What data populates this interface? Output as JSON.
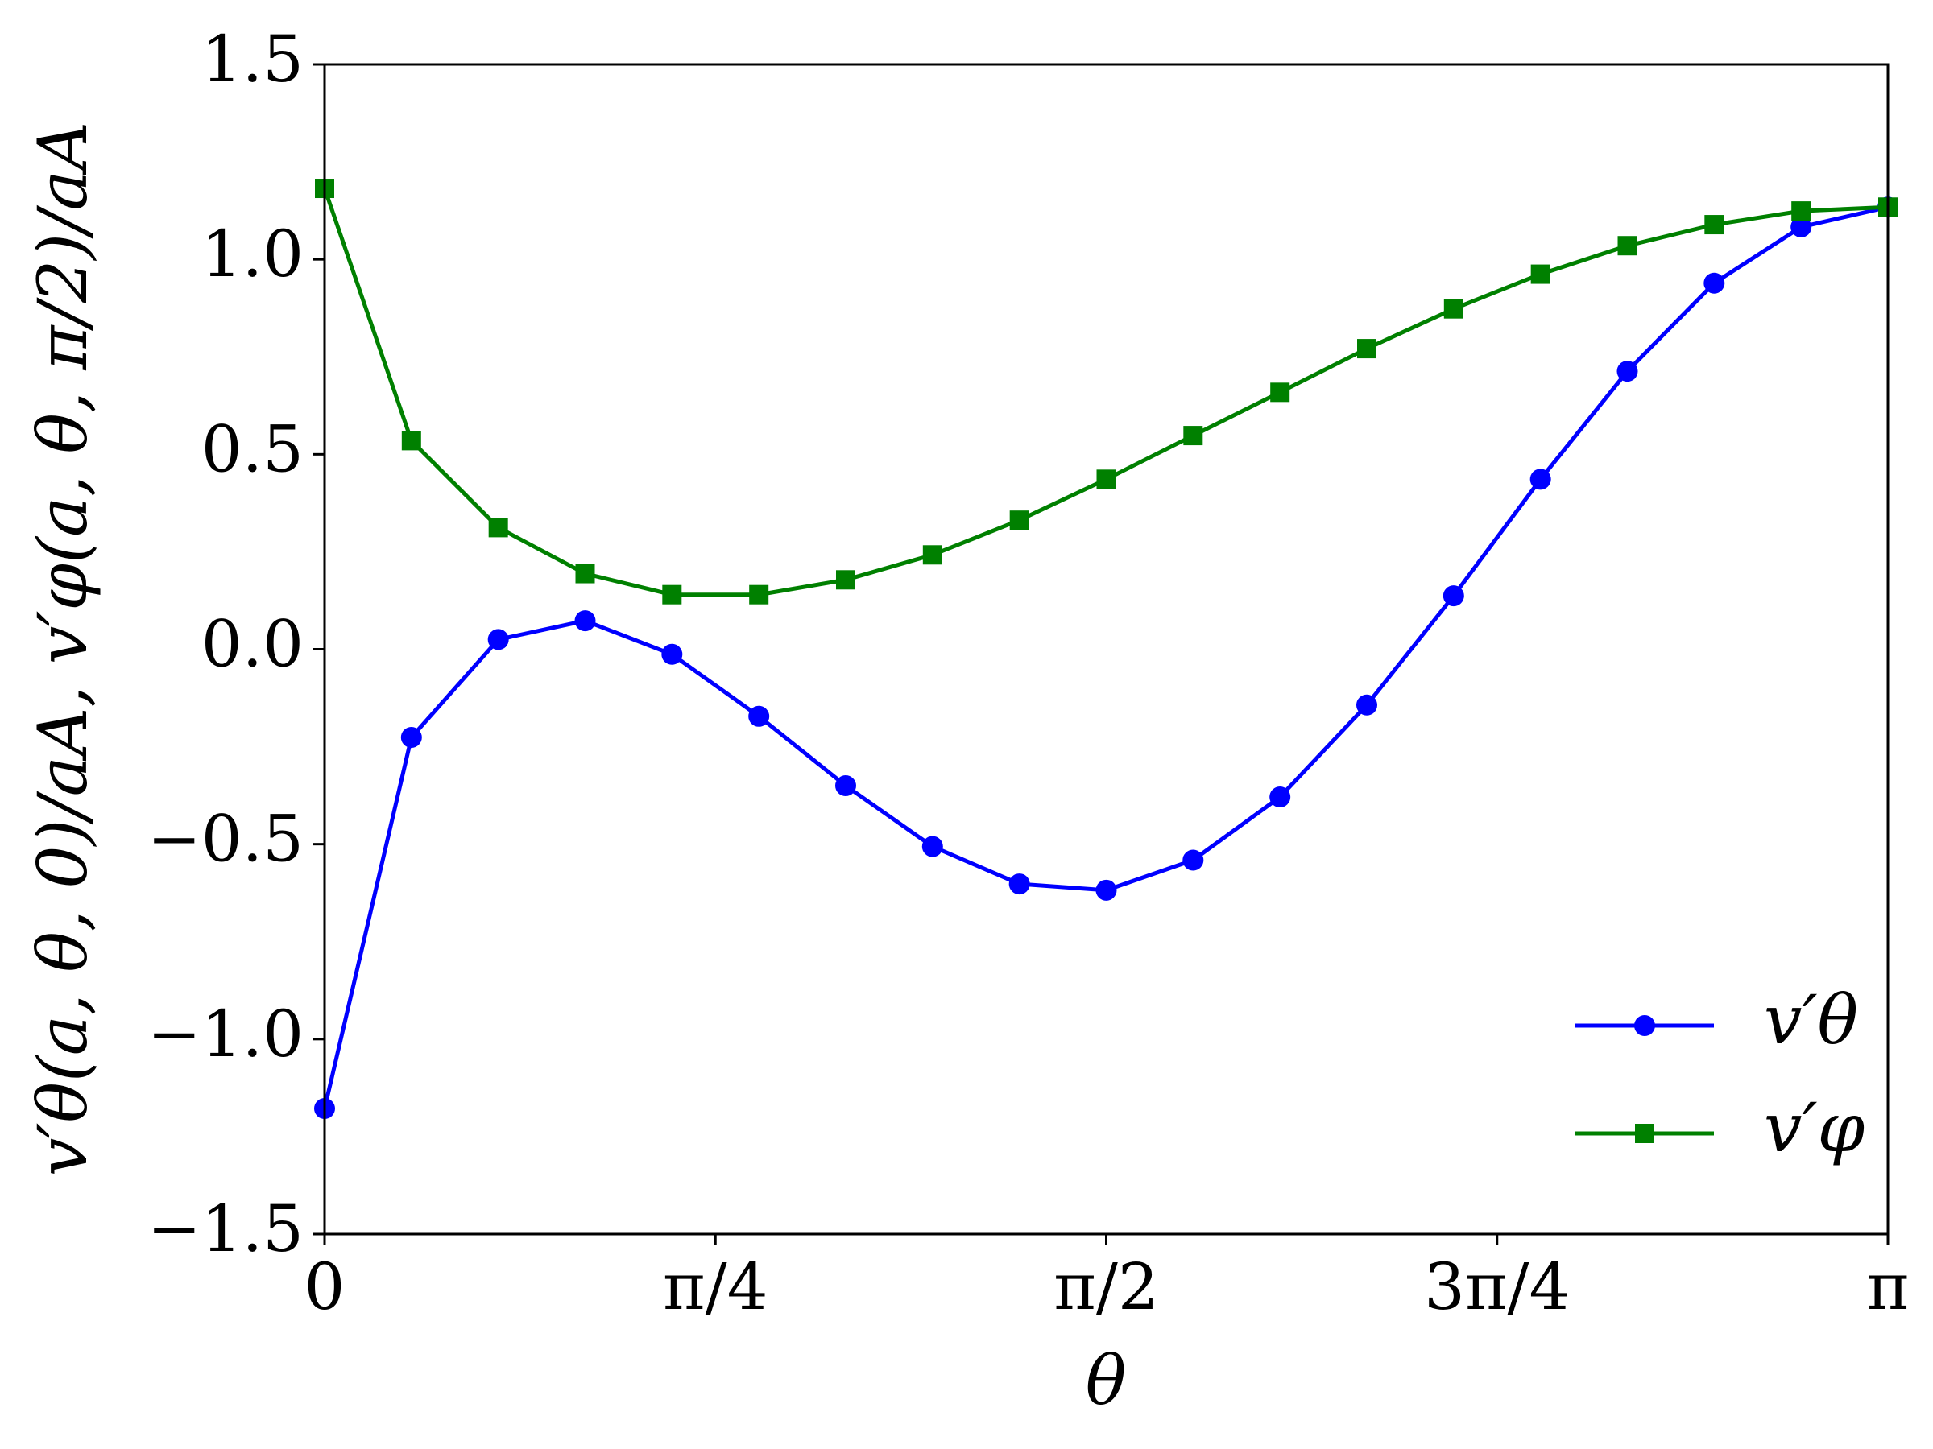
{
  "chart_data": {
    "type": "line",
    "x_label": "θ",
    "y_label": "v′θ(a, θ, 0)/aA, v′φ(a, θ, π/2)/aA",
    "x": [
      0,
      0.1745,
      0.3491,
      0.5236,
      0.6981,
      0.8727,
      1.0472,
      1.2217,
      1.3963,
      1.5708,
      1.7453,
      1.9199,
      2.0944,
      2.2689,
      2.4435,
      2.618,
      2.7925,
      2.9671,
      3.1416
    ],
    "series": [
      {
        "name": "v′θ",
        "color": "#0000ff",
        "marker": "circle",
        "values": [
          -1.178,
          -0.226,
          0.025,
          0.073,
          -0.013,
          -0.172,
          -0.35,
          -0.506,
          -0.602,
          -0.618,
          -0.541,
          -0.379,
          -0.143,
          0.137,
          0.436,
          0.713,
          0.939,
          1.083,
          1.134
        ]
      },
      {
        "name": "v′φ",
        "color": "#008000",
        "marker": "square",
        "values": [
          1.182,
          0.535,
          0.312,
          0.194,
          0.14,
          0.14,
          0.178,
          0.242,
          0.331,
          0.436,
          0.548,
          0.659,
          0.771,
          0.873,
          0.962,
          1.035,
          1.089,
          1.124,
          1.134
        ]
      }
    ],
    "xlim": [
      0,
      3.1416
    ],
    "xticks": [
      0,
      {
        "value": 0.7854,
        "label": "π/4"
      },
      {
        "value": 1.5708,
        "label": "π/2"
      },
      {
        "value": 2.3562,
        "label": "3π/4"
      },
      {
        "value": 3.1416,
        "label": "π"
      }
    ],
    "ylim": [
      -1.5,
      1.5
    ],
    "yticks": [
      {
        "value": -1.5,
        "label": "−1.5"
      },
      {
        "value": -1.0,
        "label": "−1.0"
      },
      {
        "value": -0.5,
        "label": "−0.5"
      },
      {
        "value": 0,
        "label": "0.0"
      },
      0.5,
      {
        "value": 1.0,
        "label": "1.0"
      },
      1.5
    ],
    "grid": false,
    "legend": "lower right"
  }
}
